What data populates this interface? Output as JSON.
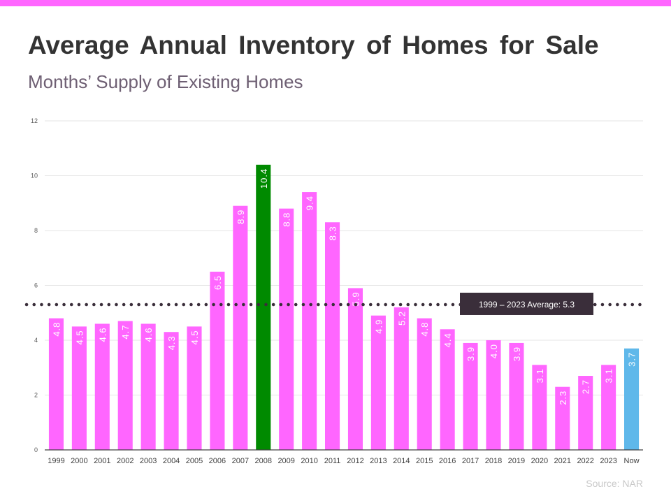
{
  "title": "Average Annual Inventory of Homes for Sale",
  "subtitle": "Months’ Supply of Existing Homes",
  "source": "Source: NAR",
  "colors": {
    "accent": "#ff66ff",
    "bar": "#ff66ff",
    "highlight": "#008a00",
    "current": "#5fb8ea",
    "average_line": "#3a2e3a",
    "annotation_bg": "#3a2e3a"
  },
  "chart_data": {
    "type": "bar",
    "title": "Average Annual Inventory of Homes for Sale",
    "subtitle": "Months’ Supply of Existing Homes",
    "xlabel": "",
    "ylabel": "",
    "ylim": [
      0,
      12
    ],
    "yticks": [
      0,
      2,
      4,
      6,
      8,
      10,
      12
    ],
    "grid": true,
    "categories": [
      "1999",
      "2000",
      "2001",
      "2002",
      "2003",
      "2004",
      "2005",
      "2006",
      "2007",
      "2008",
      "2009",
      "2010",
      "2011",
      "2012",
      "2013",
      "2014",
      "2015",
      "2016",
      "2017",
      "2018",
      "2019",
      "2020",
      "2021",
      "2022",
      "2023",
      "Now"
    ],
    "values": [
      4.8,
      4.5,
      4.6,
      4.7,
      4.6,
      4.3,
      4.5,
      6.5,
      8.9,
      10.4,
      8.8,
      9.4,
      8.3,
      5.9,
      4.9,
      5.2,
      4.8,
      4.4,
      3.9,
      4.0,
      3.9,
      3.1,
      2.3,
      2.7,
      3.1,
      3.7
    ],
    "labels": [
      "4.8",
      "4.5",
      "4.6",
      "4.7",
      "4.6",
      "4.3",
      "4.5",
      "6.5",
      "8.9",
      "10.4",
      "8.8",
      "9.4",
      "8.3",
      "5.9",
      "4.9",
      "5.2",
      "4.8",
      "4.4",
      "3.9",
      "4.0",
      "3.9",
      "3.1",
      "2.3",
      "2.7",
      "3.1",
      "3.7"
    ],
    "highlight_category": "2008",
    "current_category": "Now",
    "average": {
      "value": 5.3,
      "label": "1999 – 2023 Average:  5.3"
    }
  }
}
